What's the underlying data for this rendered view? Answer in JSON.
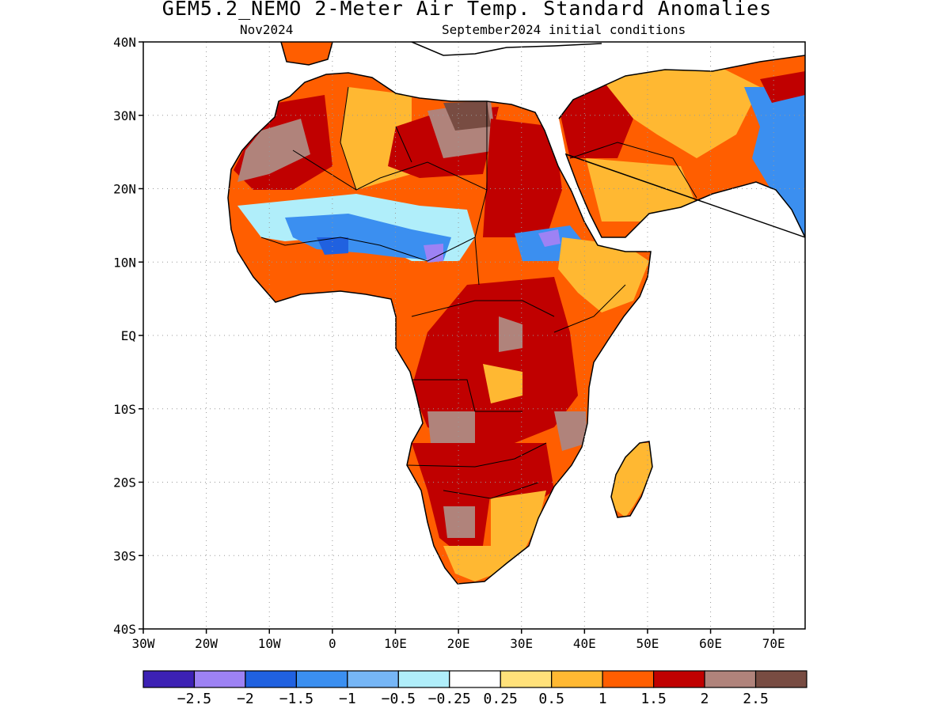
{
  "title": "GEM5.2_NEMO 2-Meter Air Temp. Standard Anomalies",
  "valid_month": "Nov2024",
  "initial_conditions": "September2024 initial conditions",
  "map": {
    "region": "Africa and Arabian Peninsula",
    "lon_range": [
      -30,
      75
    ],
    "lat_range": [
      -40,
      40
    ],
    "lat_ticks": [
      {
        "value": 40,
        "label": "40N"
      },
      {
        "value": 30,
        "label": "30N"
      },
      {
        "value": 20,
        "label": "20N"
      },
      {
        "value": 10,
        "label": "10N"
      },
      {
        "value": 0,
        "label": "EQ"
      },
      {
        "value": -10,
        "label": "10S"
      },
      {
        "value": -20,
        "label": "20S"
      },
      {
        "value": -30,
        "label": "30S"
      },
      {
        "value": -40,
        "label": "40S"
      }
    ],
    "lon_ticks": [
      {
        "value": -30,
        "label": "30W"
      },
      {
        "value": -20,
        "label": "20W"
      },
      {
        "value": -10,
        "label": "10W"
      },
      {
        "value": 0,
        "label": "0"
      },
      {
        "value": 10,
        "label": "10E"
      },
      {
        "value": 20,
        "label": "20E"
      },
      {
        "value": 30,
        "label": "30E"
      },
      {
        "value": 40,
        "label": "40E"
      },
      {
        "value": 50,
        "label": "50E"
      },
      {
        "value": 60,
        "label": "60E"
      },
      {
        "value": 70,
        "label": "70E"
      }
    ],
    "gridlines": "dotted"
  },
  "colorbar": {
    "colors": [
      "#3c21b4",
      "#9d82f4",
      "#2061e0",
      "#3b8ff0",
      "#76b6f6",
      "#b0eefa",
      "#ffffff",
      "#ffe17a",
      "#ffb832",
      "#ff5e00",
      "#c00000",
      "#b0837b",
      "#784c42"
    ],
    "labels": [
      "−2.5",
      "−2",
      "−1.5",
      "−1",
      "−0.5",
      "−0.25",
      "0.25",
      "0.5",
      "1",
      "1.5",
      "2",
      "2.5"
    ]
  }
}
